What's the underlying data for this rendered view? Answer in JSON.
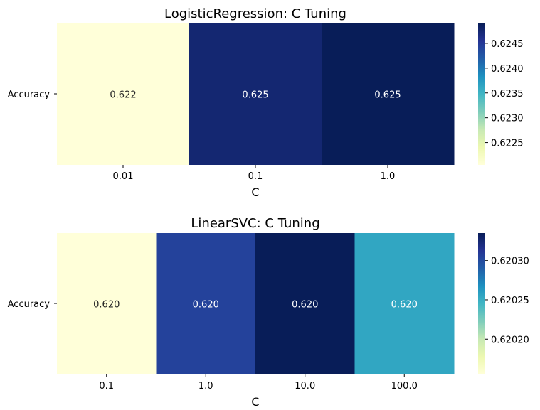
{
  "chart_data": [
    {
      "type": "heatmap",
      "title": "LogisticRegression: C Tuning",
      "xlabel": "C",
      "ylabel": "",
      "row_labels": [
        "Accuracy"
      ],
      "categories": [
        "0.01",
        "0.1",
        "1.0"
      ],
      "values": [
        0.62205,
        0.62475,
        0.6249
      ],
      "annotations": [
        "0.622",
        "0.625",
        "0.625"
      ],
      "colorbar": {
        "min": 0.62205,
        "max": 0.6249,
        "ticks": [
          0.6225,
          0.623,
          0.6235,
          0.624,
          0.6245
        ],
        "tick_labels": [
          "0.6225",
          "0.6230",
          "0.6235",
          "0.6240",
          "0.6245"
        ]
      },
      "colormap": "YlGnBu",
      "grid": false
    },
    {
      "type": "heatmap",
      "title": "LinearSVC: C Tuning",
      "xlabel": "C",
      "ylabel": "",
      "row_labels": [
        "Accuracy"
      ],
      "categories": [
        "0.1",
        "1.0",
        "10.0",
        "100.0"
      ],
      "values": [
        0.620155,
        0.620305,
        0.620335,
        0.620255
      ],
      "annotations": [
        "0.620",
        "0.620",
        "0.620",
        "0.620"
      ],
      "colorbar": {
        "min": 0.620155,
        "max": 0.620335,
        "ticks": [
          0.6202,
          0.62025,
          0.6203
        ],
        "tick_labels": [
          "0.62020",
          "0.62025",
          "0.62030"
        ]
      },
      "colormap": "YlGnBu",
      "grid": false
    }
  ]
}
